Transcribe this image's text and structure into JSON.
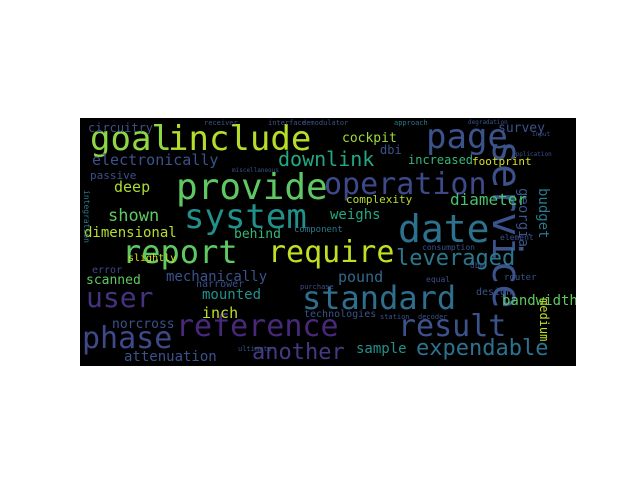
{
  "wordcloud": {
    "words": [
      {
        "text": "goal",
        "color": "#8fd744"
      },
      {
        "text": "include",
        "color": "#b5de2b"
      },
      {
        "text": "page",
        "color": "#3b528b"
      },
      {
        "text": "provide",
        "color": "#5ec962"
      },
      {
        "text": "operation",
        "color": "#3e4989"
      },
      {
        "text": "system",
        "color": "#21918c"
      },
      {
        "text": "date",
        "color": "#2c728e"
      },
      {
        "text": "service",
        "color": "#3b528b"
      },
      {
        "text": "report",
        "color": "#5ec962"
      },
      {
        "text": "require",
        "color": "#c2df23"
      },
      {
        "text": "leveraged",
        "color": "#2a788e"
      },
      {
        "text": "user",
        "color": "#46327e"
      },
      {
        "text": "standard",
        "color": "#2e6f8e"
      },
      {
        "text": "reference",
        "color": "#482878"
      },
      {
        "text": "result",
        "color": "#3b528b"
      },
      {
        "text": "phase",
        "color": "#3e4989"
      },
      {
        "text": "another",
        "color": "#443a83"
      },
      {
        "text": "expendable",
        "color": "#2c728e"
      },
      {
        "text": "electronically",
        "color": "#3b528b"
      },
      {
        "text": "downlink",
        "color": "#22a884"
      },
      {
        "text": "circuitry",
        "color": "#3b528b"
      },
      {
        "text": "cockpit",
        "color": "#9fda3a"
      },
      {
        "text": "survey",
        "color": "#3b528b"
      },
      {
        "text": "budget",
        "color": "#2a788e"
      },
      {
        "text": "georgia",
        "color": "#3b528b"
      },
      {
        "text": "deep",
        "color": "#aadc32"
      },
      {
        "text": "shown",
        "color": "#5ec962"
      },
      {
        "text": "weighs",
        "color": "#22a884"
      },
      {
        "text": "diameter",
        "color": "#4ac16d"
      },
      {
        "text": "dimensional",
        "color": "#b5de2b"
      },
      {
        "text": "behind",
        "color": "#35b779"
      },
      {
        "text": "mechanically",
        "color": "#3b528b"
      },
      {
        "text": "pound",
        "color": "#31688e"
      },
      {
        "text": "scanned",
        "color": "#5ec962"
      },
      {
        "text": "mounted",
        "color": "#21918c"
      },
      {
        "text": "inch",
        "color": "#bddf26"
      },
      {
        "text": "bandwidth",
        "color": "#5ec962"
      },
      {
        "text": "norcross",
        "color": "#3b528b"
      },
      {
        "text": "attenuation",
        "color": "#3b528b"
      },
      {
        "text": "sample",
        "color": "#21918c"
      },
      {
        "text": "medium",
        "color": "#c2df23"
      },
      {
        "text": "dbi",
        "color": "#3b528b"
      },
      {
        "text": "increased",
        "color": "#35b779"
      },
      {
        "text": "footprint",
        "color": "#d8e219"
      },
      {
        "text": "complexity",
        "color": "#b5de2b"
      },
      {
        "text": "passive",
        "color": "#3b528b"
      },
      {
        "text": "slightly",
        "color": "#d8e219"
      },
      {
        "text": "error",
        "color": "#3e4989"
      },
      {
        "text": "narrower",
        "color": "#3b528b"
      },
      {
        "text": "technologies",
        "color": "#3b528b"
      },
      {
        "text": "design",
        "color": "#3b528b"
      },
      {
        "text": "consumption",
        "color": "#3b528b"
      },
      {
        "text": "dbw",
        "color": "#3b528b"
      },
      {
        "text": "equal",
        "color": "#3e4989"
      },
      {
        "text": "router",
        "color": "#3b528b"
      },
      {
        "text": "integration",
        "color": "#2a788e"
      },
      {
        "text": "component",
        "color": "#2a788e"
      },
      {
        "text": "element",
        "color": "#3b528b"
      },
      {
        "text": "receiver",
        "color": "#3b528b"
      },
      {
        "text": "interface",
        "color": "#3b528b"
      },
      {
        "text": "demodulator",
        "color": "#3b528b"
      },
      {
        "text": "approach",
        "color": "#2a788e"
      },
      {
        "text": "degradation",
        "color": "#3b528b"
      },
      {
        "text": "purchase",
        "color": "#3b528b"
      },
      {
        "text": "decoder",
        "color": "#3b528b"
      },
      {
        "text": "ultimate",
        "color": "#3b528b"
      },
      {
        "text": "station",
        "color": "#3b528b"
      },
      {
        "text": "miscellaneous",
        "color": "#3b528b"
      },
      {
        "text": "input",
        "color": "#3b528b"
      },
      {
        "text": "application",
        "color": "#3b528b"
      }
    ]
  }
}
